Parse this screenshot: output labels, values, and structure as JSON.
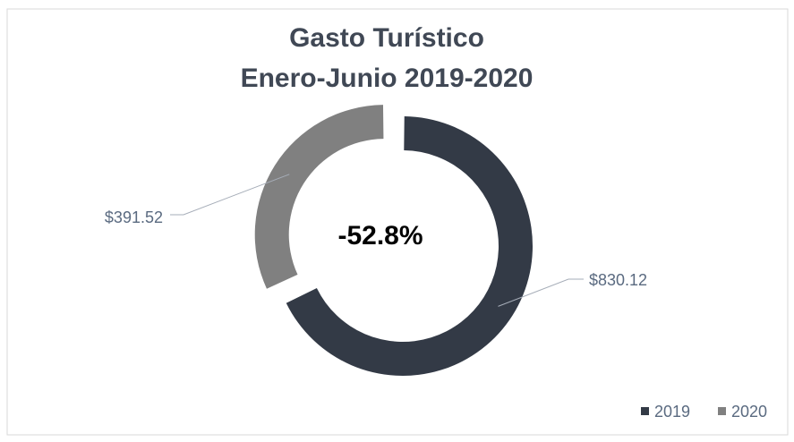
{
  "chart_data": {
    "type": "donut",
    "title": "Gasto Turístico",
    "subtitle": "Enero-Junio 2019-2020",
    "categories": [
      "2019",
      "2020"
    ],
    "values": [
      830.12,
      391.52
    ],
    "value_labels": [
      "$830.12",
      "$391.52"
    ],
    "colors": [
      "#333a46",
      "#808080"
    ],
    "annotation": "-52.8%",
    "legend": "bottom-right"
  }
}
